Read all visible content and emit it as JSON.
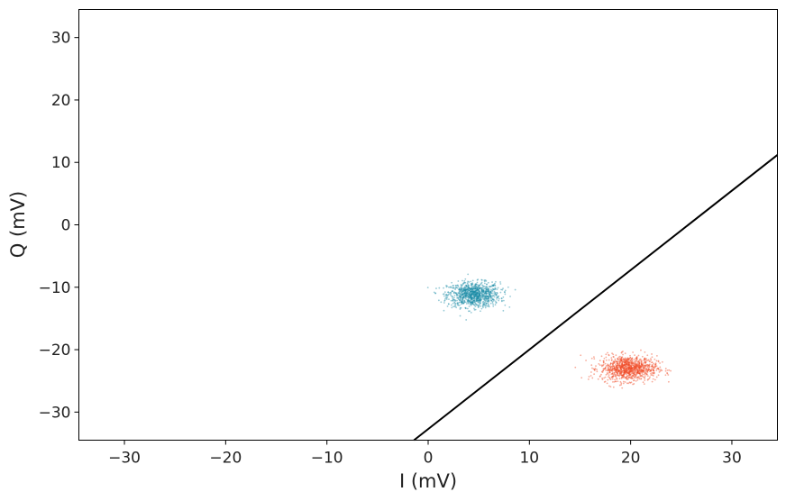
{
  "chart_data": {
    "type": "scatter",
    "title": "",
    "xlabel": "I (mV)",
    "ylabel": "Q (mV)",
    "xlim": [
      -34.5,
      34.5
    ],
    "ylim": [
      -34.5,
      34.5
    ],
    "xticks": [
      -30,
      -20,
      -10,
      0,
      10,
      20,
      30
    ],
    "yticks": [
      -30,
      -20,
      -10,
      0,
      10,
      20,
      30
    ],
    "xtick_labels": [
      "−30",
      "−20",
      "−10",
      "0",
      "10",
      "20",
      "30"
    ],
    "ytick_labels": [
      "−30",
      "−20",
      "−10",
      "0",
      "10",
      "20",
      "30"
    ],
    "grid": false,
    "series": [
      {
        "color": "#1a8ca6",
        "center": [
          4.5,
          -11.2
        ],
        "spread": [
          1.3,
          1.0
        ],
        "count": 1000
      },
      {
        "color": "#f0451f",
        "center": [
          19.8,
          -23.0
        ],
        "spread": [
          1.4,
          1.0
        ],
        "count": 1000
      }
    ],
    "line": {
      "color": "#000000",
      "points": [
        [
          -1.4,
          -34.5
        ],
        [
          34.5,
          11.2
        ]
      ]
    }
  }
}
